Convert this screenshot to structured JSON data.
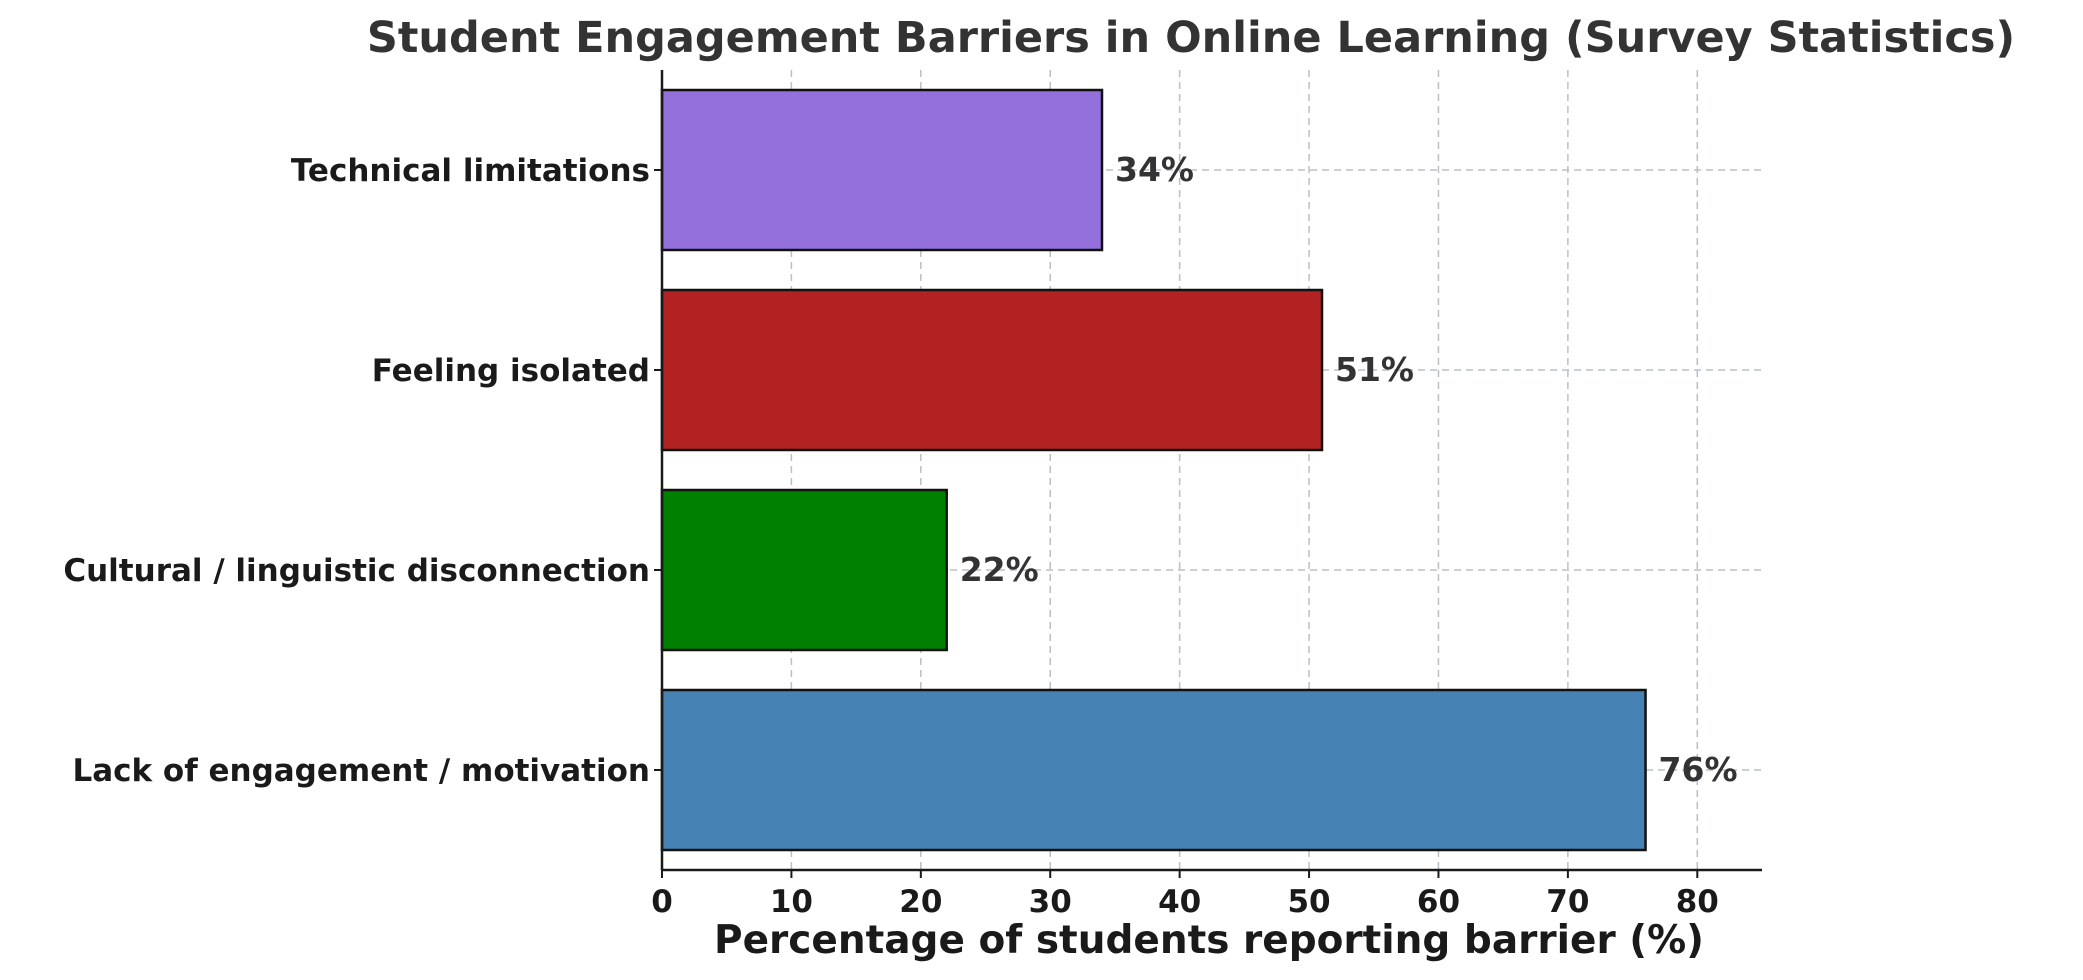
{
  "chart_data": {
    "type": "bar",
    "orientation": "horizontal",
    "title": "Student Engagement Barriers in Online Learning (Survey Statistics)",
    "xlabel": "Percentage of students reporting barrier (%)",
    "ylabel": "",
    "categories": [
      "Lack of engagement / motivation",
      "Cultural / linguistic disconnection",
      "Feeling isolated",
      "Technical limitations"
    ],
    "values": [
      76,
      22,
      51,
      34
    ],
    "data_labels": [
      "76%",
      "22%",
      "51%",
      "34%"
    ],
    "colors": [
      "#4682b4",
      "#008000",
      "#b22222",
      "#9370db"
    ],
    "xlim": [
      0,
      85
    ],
    "xticks": [
      0,
      10,
      20,
      30,
      40,
      50,
      60,
      70,
      80
    ],
    "xtick_labels": [
      "0",
      "10",
      "20",
      "30",
      "40",
      "50",
      "60",
      "70",
      "80"
    ],
    "grid": true
  }
}
